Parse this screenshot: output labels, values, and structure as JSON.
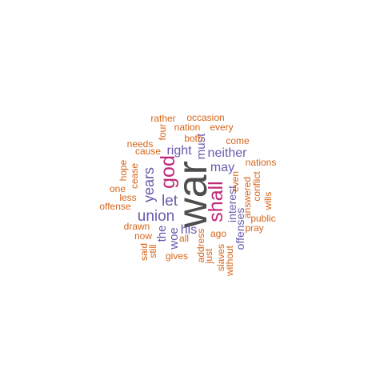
{
  "colors": {
    "largest": "#4d4d4d",
    "large": "#c0287a",
    "medium": "#6a5aab",
    "small": "#d5651a"
  },
  "words": [
    {
      "text": "war",
      "tier": "largest"
    },
    {
      "text": "god",
      "tier": "large"
    },
    {
      "text": "shall",
      "tier": "large"
    },
    {
      "text": "union",
      "tier": "medium"
    },
    {
      "text": "years",
      "tier": "medium"
    },
    {
      "text": "let",
      "tier": "medium"
    },
    {
      "text": "right",
      "tier": "medium"
    },
    {
      "text": "neither",
      "tier": "medium"
    },
    {
      "text": "may",
      "tier": "medium"
    },
    {
      "text": "must",
      "tier": "medium"
    },
    {
      "text": "his",
      "tier": "medium"
    },
    {
      "text": "the",
      "tier": "medium"
    },
    {
      "text": "woe",
      "tier": "medium"
    },
    {
      "text": "interest",
      "tier": "medium"
    },
    {
      "text": "offenses",
      "tier": "medium"
    },
    {
      "text": "rather",
      "tier": "small"
    },
    {
      "text": "occasion",
      "tier": "small"
    },
    {
      "text": "nation",
      "tier": "small"
    },
    {
      "text": "every",
      "tier": "small"
    },
    {
      "text": "four",
      "tier": "small"
    },
    {
      "text": "both",
      "tier": "small"
    },
    {
      "text": "needs",
      "tier": "small"
    },
    {
      "text": "come",
      "tier": "small"
    },
    {
      "text": "cause",
      "tier": "small"
    },
    {
      "text": "hope",
      "tier": "small"
    },
    {
      "text": "cease",
      "tier": "small"
    },
    {
      "text": "nations",
      "tier": "small"
    },
    {
      "text": "one",
      "tier": "small"
    },
    {
      "text": "even",
      "tier": "small"
    },
    {
      "text": "conflict",
      "tier": "small"
    },
    {
      "text": "less",
      "tier": "small"
    },
    {
      "text": "answered",
      "tier": "small"
    },
    {
      "text": "wills",
      "tier": "small"
    },
    {
      "text": "offense",
      "tier": "small"
    },
    {
      "text": "public",
      "tier": "small"
    },
    {
      "text": "drawn",
      "tier": "small"
    },
    {
      "text": "pray",
      "tier": "small"
    },
    {
      "text": "now",
      "tier": "small"
    },
    {
      "text": "ago",
      "tier": "small"
    },
    {
      "text": "all",
      "tier": "small"
    },
    {
      "text": "address",
      "tier": "small"
    },
    {
      "text": "said",
      "tier": "small"
    },
    {
      "text": "still",
      "tier": "small"
    },
    {
      "text": "gives",
      "tier": "small"
    },
    {
      "text": "just",
      "tier": "small"
    },
    {
      "text": "slaves",
      "tier": "small"
    },
    {
      "text": "without",
      "tier": "small"
    }
  ]
}
